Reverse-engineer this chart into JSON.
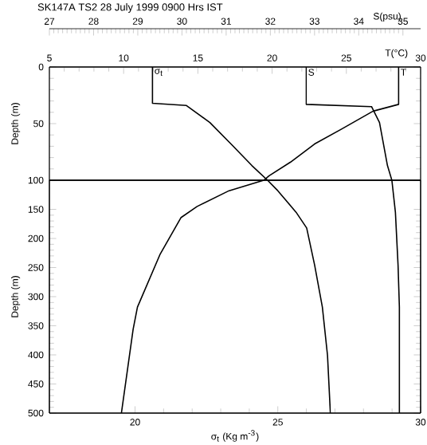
{
  "chart_data": [
    {
      "type": "line",
      "title": "SK147A TS2   28 July 1999 0900 Hrs IST",
      "ylabel": "Depth (m)",
      "ylim": [
        100,
        0
      ],
      "yticks": [
        0,
        50,
        100
      ],
      "xlim": [
        27,
        35.4
      ],
      "xticks": [
        27,
        28,
        29,
        30,
        31,
        32,
        33,
        34,
        35
      ],
      "xlabel": "S(psu)",
      "x2lim": [
        5,
        30
      ],
      "x2ticks": [
        5,
        10,
        15,
        20,
        25,
        30
      ],
      "x2label": "T(°C)",
      "series": [
        {
          "name": "S",
          "color": "#000000",
          "x": [
            32.81,
            32.81,
            34.29,
            34.47,
            34.56,
            34.65,
            34.75
          ],
          "values": [
            0,
            33,
            35,
            49,
            68,
            87,
            100
          ]
        },
        {
          "name": "T",
          "color": "#000000",
          "axis": "x2",
          "x": [
            28.52,
            28.52,
            26.8,
            24.65,
            22.86,
            21.24,
            19.8,
            19.44
          ],
          "values": [
            0,
            33,
            39,
            55,
            68,
            84,
            96,
            100
          ]
        }
      ]
    },
    {
      "type": "line",
      "xlabel": "σ$_{t}$ (Kg m$^{-3}$)",
      "ylabel": "Depth (m)",
      "ylim": [
        500,
        100
      ],
      "yticks": [
        150,
        200,
        250,
        300,
        350,
        400,
        450,
        500
      ],
      "xlim": [
        17,
        30
      ],
      "xticks": [
        20,
        25,
        30
      ],
      "series": [
        {
          "color": "#000000",
          "x": [
            24.64,
            25.0,
            25.64,
            26.01,
            26.29,
            26.56,
            26.74,
            26.84
          ],
          "values": [
            100,
            118,
            155,
            182,
            246,
            318,
            401,
            500
          ]
        }
      ]
    },
    {
      "type": "line",
      "ylim": [
        100,
        0
      ],
      "yticks": [
        0,
        50,
        100
      ],
      "xlim": [
        17,
        30
      ],
      "xticks": [
        20,
        25,
        30
      ],
      "tick_labels": false,
      "series": [
        {
          "name": "σ$_{t}$",
          "color": "#000000",
          "x": [
            20.61,
            20.61,
            21.8,
            22.62,
            23.36,
            24.09,
            24.64
          ],
          "values": [
            0,
            32,
            34,
            49,
            68,
            87,
            100
          ]
        }
      ]
    },
    {
      "type": "line",
      "ylim": [
        500,
        100
      ],
      "yticks": [
        150,
        200,
        250,
        300,
        350,
        400,
        450,
        500
      ],
      "xlim": [
        27,
        35.4
      ],
      "xticks": [
        27,
        28,
        29,
        30,
        31,
        32,
        33,
        34,
        35
      ],
      "tick_labels": false,
      "series": [
        {
          "color": "#000000",
          "x": [
            34.75,
            34.83,
            34.89,
            34.92,
            34.92
          ],
          "values": [
            100,
            155,
            246,
            318,
            500
          ]
        }
      ]
    },
    {
      "type": "line",
      "ylim": [
        500,
        100
      ],
      "yticks": [
        150,
        200,
        250,
        300,
        350,
        400,
        450,
        500
      ],
      "xlim": [
        5,
        30
      ],
      "xticks": [
        5,
        10,
        15,
        20,
        25,
        30
      ],
      "tick_labels": false,
      "series": [
        {
          "color": "#000000",
          "x": [
            19.44,
            17.1,
            14.95,
            13.87,
            12.44,
            10.93,
            10.64,
            9.85
          ],
          "values": [
            100,
            118,
            145,
            164,
            228,
            318,
            356,
            500
          ]
        }
      ]
    }
  ]
}
